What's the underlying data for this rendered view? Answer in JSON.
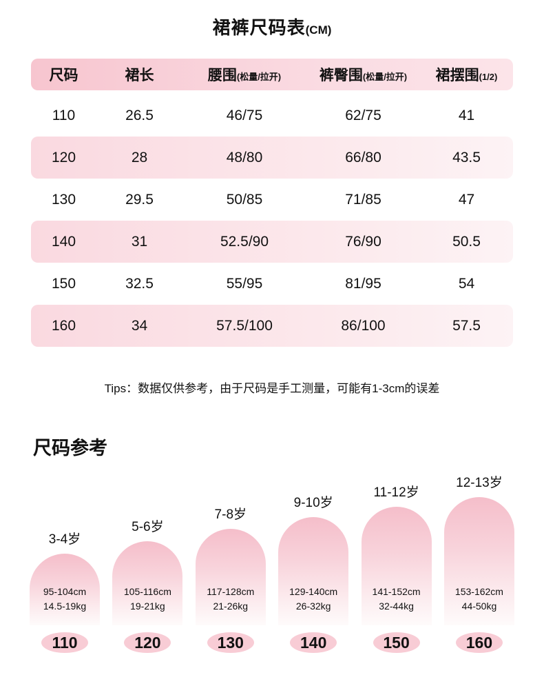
{
  "title": {
    "main": "裙裤尺码表",
    "unit": "(CM)"
  },
  "colors": {
    "header_pink": "#f7c5cf",
    "row_pink": "#fad9e0",
    "arch_pink_top": "#f5beca",
    "pill_pink": "#f8ccd5",
    "text": "#111111"
  },
  "table": {
    "headers": [
      {
        "main": "尺码",
        "sub": ""
      },
      {
        "main": "裙长",
        "sub": ""
      },
      {
        "main": "腰围",
        "sub": "(松量/拉开)"
      },
      {
        "main": "裤臀围",
        "sub": "(松量/拉开)"
      },
      {
        "main": "裙摆围",
        "sub": "(1/2)"
      }
    ],
    "rows": [
      [
        "110",
        "26.5",
        "46/75",
        "62/75",
        "41"
      ],
      [
        "120",
        "28",
        "48/80",
        "66/80",
        "43.5"
      ],
      [
        "130",
        "29.5",
        "50/85",
        "71/85",
        "47"
      ],
      [
        "140",
        "31",
        "52.5/90",
        "76/90",
        "50.5"
      ],
      [
        "150",
        "32.5",
        "55/95",
        "81/95",
        "54"
      ],
      [
        "160",
        "34",
        "57.5/100",
        "86/100",
        "57.5"
      ]
    ]
  },
  "tips": "Tips：数据仅供参考，由于尺码是手工测量，可能有1-3cm的误差",
  "reference": {
    "heading": "尺码参考",
    "items": [
      {
        "age": "3-4岁",
        "height": "95-104cm",
        "weight": "14.5-19kg",
        "size": "110"
      },
      {
        "age": "5-6岁",
        "height": "105-116cm",
        "weight": "19-21kg",
        "size": "120"
      },
      {
        "age": "7-8岁",
        "height": "117-128cm",
        "weight": "21-26kg",
        "size": "130"
      },
      {
        "age": "9-10岁",
        "height": "129-140cm",
        "weight": "26-32kg",
        "size": "140"
      },
      {
        "age": "11-12岁",
        "height": "141-152cm",
        "weight": "32-44kg",
        "size": "150"
      },
      {
        "age": "12-13岁",
        "height": "153-162cm",
        "weight": "44-50kg",
        "size": "160"
      }
    ]
  },
  "chart_data": {
    "type": "table",
    "title": "裙裤尺码表(CM)",
    "columns": [
      "尺码",
      "裙长",
      "腰围(松量/拉开)",
      "裤臀围(松量/拉开)",
      "裙摆围(1/2)"
    ],
    "rows": [
      [
        "110",
        "26.5",
        "46/75",
        "62/75",
        "41"
      ],
      [
        "120",
        "28",
        "48/80",
        "66/80",
        "43.5"
      ],
      [
        "130",
        "29.5",
        "50/85",
        "71/85",
        "47"
      ],
      [
        "140",
        "31",
        "52.5/90",
        "76/90",
        "50.5"
      ],
      [
        "150",
        "32.5",
        "55/95",
        "81/95",
        "54"
      ],
      [
        "160",
        "34",
        "57.5/100",
        "86/100",
        "57.5"
      ]
    ],
    "size_reference": [
      {
        "age": "3-4岁",
        "height_cm": "95-104",
        "weight_kg": "14.5-19",
        "size": "110"
      },
      {
        "age": "5-6岁",
        "height_cm": "105-116",
        "weight_kg": "19-21",
        "size": "120"
      },
      {
        "age": "7-8岁",
        "height_cm": "117-128",
        "weight_kg": "21-26",
        "size": "130"
      },
      {
        "age": "9-10岁",
        "height_cm": "129-140",
        "weight_kg": "26-32",
        "size": "140"
      },
      {
        "age": "11-12岁",
        "height_cm": "141-152",
        "weight_kg": "32-44",
        "size": "150"
      },
      {
        "age": "12-13岁",
        "height_cm": "153-162",
        "weight_kg": "44-50",
        "size": "160"
      }
    ]
  }
}
